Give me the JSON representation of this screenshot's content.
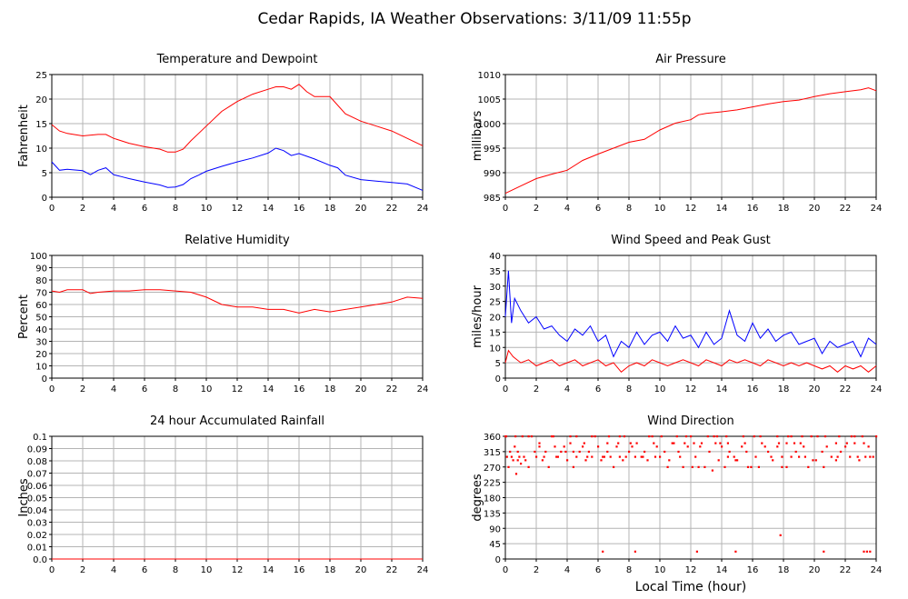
{
  "page": {
    "title": "Cedar Rapids, IA Weather Observations: 3/11/09 11:55p",
    "xlabel": "Local Time (hour)"
  },
  "colors": {
    "series_a": "#ff0000",
    "series_b": "#0000ff",
    "grid": "#b4b4b4"
  },
  "chart_data": [
    {
      "id": "temp",
      "type": "line",
      "title": "Temperature and Dewpoint",
      "ylabel": "Fahrenheit",
      "xlim": [
        0,
        24
      ],
      "xticks": [
        0,
        2,
        4,
        6,
        8,
        10,
        12,
        14,
        16,
        18,
        20,
        22,
        24
      ],
      "ylim": [
        0,
        25
      ],
      "yticks": [
        0,
        5,
        10,
        15,
        20,
        25
      ],
      "grid": true,
      "series": [
        {
          "color": "#ff0000",
          "x": [
            0,
            0.5,
            1,
            2,
            3,
            3.5,
            4,
            5,
            6,
            7,
            7.5,
            8,
            8.5,
            9,
            9.5,
            10,
            11,
            12,
            13,
            14,
            14.5,
            15,
            15.5,
            16,
            16.5,
            17,
            18,
            19,
            20,
            21,
            22,
            23,
            24
          ],
          "y": [
            14.8,
            13.5,
            13,
            12.5,
            12.8,
            12.8,
            12,
            11,
            10.3,
            9.8,
            9.2,
            9.2,
            9.8,
            11.5,
            13,
            14.5,
            17.5,
            19.5,
            21,
            22,
            22.5,
            22.5,
            22,
            23,
            21.5,
            20.5,
            20.5,
            17,
            15.5,
            14.5,
            13.5,
            12,
            10.5
          ]
        },
        {
          "color": "#0000ff",
          "x": [
            0,
            0.5,
            1,
            2,
            2.5,
            3,
            3.5,
            4,
            4.5,
            5,
            6,
            7,
            7.5,
            8,
            8.5,
            9,
            9.5,
            10,
            11,
            12,
            13,
            14,
            14.5,
            15,
            15.5,
            16,
            17,
            18,
            18.5,
            19,
            20,
            21,
            22,
            23,
            24
          ],
          "y": [
            7.2,
            5.5,
            5.7,
            5.4,
            4.6,
            5.5,
            6,
            4.6,
            4.2,
            3.8,
            3.1,
            2.5,
            2.0,
            2.1,
            2.6,
            3.8,
            4.5,
            5.3,
            6.3,
            7.2,
            8,
            9,
            10,
            9.5,
            8.5,
            8.9,
            7.8,
            6.5,
            6,
            4.5,
            3.6,
            3.3,
            3,
            2.7,
            1.4
          ]
        }
      ]
    },
    {
      "id": "pressure",
      "type": "line",
      "title": "Air Pressure",
      "ylabel": "millibars",
      "xlim": [
        0,
        24
      ],
      "xticks": [
        0,
        2,
        4,
        6,
        8,
        10,
        12,
        14,
        16,
        18,
        20,
        22,
        24
      ],
      "ylim": [
        985,
        1010
      ],
      "yticks": [
        985,
        990,
        995,
        1000,
        1005,
        1010
      ],
      "grid": true,
      "series": [
        {
          "color": "#ff0000",
          "x": [
            0,
            1,
            2,
            3,
            4,
            5,
            6,
            7,
            8,
            9,
            10,
            11,
            12,
            12.5,
            13,
            14,
            15,
            16,
            17,
            18,
            19,
            20,
            21,
            22,
            23,
            23.5,
            24
          ],
          "y": [
            985.8,
            987.3,
            988.8,
            989.7,
            990.5,
            992.5,
            993.8,
            995,
            996.2,
            996.8,
            998.7,
            1000.1,
            1000.8,
            1001.8,
            1002.1,
            1002.4,
            1002.8,
            1003.4,
            1004,
            1004.5,
            1004.8,
            1005.5,
            1006.1,
            1006.5,
            1006.9,
            1007.3,
            1006.7
          ]
        }
      ]
    },
    {
      "id": "humidity",
      "type": "line",
      "title": "Relative Humidity",
      "ylabel": "Percent",
      "xlim": [
        0,
        24
      ],
      "xticks": [
        0,
        2,
        4,
        6,
        8,
        10,
        12,
        14,
        16,
        18,
        20,
        22,
        24
      ],
      "ylim": [
        0,
        100
      ],
      "yticks": [
        0,
        10,
        20,
        30,
        40,
        50,
        60,
        70,
        80,
        90,
        100
      ],
      "grid": true,
      "series": [
        {
          "color": "#ff0000",
          "x": [
            0,
            0.5,
            1,
            2,
            2.5,
            3,
            4,
            5,
            6,
            7,
            8,
            9,
            10,
            11,
            12,
            13,
            14,
            15,
            16,
            17,
            18,
            19,
            20,
            21,
            22,
            23,
            24
          ],
          "y": [
            71,
            70,
            72,
            72,
            69,
            70,
            71,
            71,
            72,
            72,
            71,
            70,
            66,
            60,
            58,
            58,
            56,
            56,
            53,
            56,
            54,
            56,
            58,
            60,
            62,
            66,
            65
          ]
        }
      ]
    },
    {
      "id": "wind",
      "type": "line",
      "title": "Wind Speed and Peak Gust",
      "ylabel": "miles/hour",
      "xlim": [
        0,
        24
      ],
      "xticks": [
        0,
        2,
        4,
        6,
        8,
        10,
        12,
        14,
        16,
        18,
        20,
        22,
        24
      ],
      "ylim": [
        0,
        40
      ],
      "yticks": [
        0,
        5,
        10,
        15,
        20,
        25,
        30,
        35,
        40
      ],
      "grid": true,
      "series": [
        {
          "color": "#0000ff",
          "x": [
            0,
            0.2,
            0.4,
            0.6,
            1,
            1.5,
            2,
            2.5,
            3,
            3.5,
            4,
            4.5,
            5,
            5.5,
            6,
            6.5,
            7,
            7.5,
            8,
            8.5,
            9,
            9.5,
            10,
            10.5,
            11,
            11.5,
            12,
            12.5,
            13,
            13.5,
            14,
            14.5,
            15,
            15.5,
            16,
            16.5,
            17,
            17.5,
            18,
            18.5,
            19,
            19.5,
            20,
            20.5,
            21,
            21.5,
            22,
            22.5,
            23,
            23.5,
            24
          ],
          "y": [
            20,
            35,
            18,
            26,
            22,
            18,
            20,
            16,
            17,
            14,
            12,
            16,
            14,
            17,
            12,
            14,
            7,
            12,
            10,
            15,
            11,
            14,
            15,
            12,
            17,
            13,
            14,
            10,
            15,
            11,
            13,
            22,
            14,
            12,
            18,
            13,
            16,
            12,
            14,
            15,
            11,
            12,
            13,
            8,
            12,
            10,
            11,
            12,
            7,
            13,
            11
          ]
        },
        {
          "color": "#ff0000",
          "x": [
            0,
            0.2,
            0.5,
            1,
            1.5,
            2,
            2.5,
            3,
            3.5,
            4,
            4.5,
            5,
            5.5,
            6,
            6.5,
            7,
            7.5,
            8,
            8.5,
            9,
            9.5,
            10,
            10.5,
            11,
            11.5,
            12,
            12.5,
            13,
            13.5,
            14,
            14.5,
            15,
            15.5,
            16,
            16.5,
            17,
            17.5,
            18,
            18.5,
            19,
            19.5,
            20,
            20.5,
            21,
            21.5,
            22,
            22.5,
            23,
            23.5,
            24
          ],
          "y": [
            5,
            9,
            7,
            5,
            6,
            4,
            5,
            6,
            4,
            5,
            6,
            4,
            5,
            6,
            4,
            5,
            2,
            4,
            5,
            4,
            6,
            5,
            4,
            5,
            6,
            5,
            4,
            6,
            5,
            4,
            6,
            5,
            6,
            5,
            4,
            6,
            5,
            4,
            5,
            4,
            5,
            4,
            3,
            4,
            2,
            4,
            3,
            4,
            2,
            4
          ]
        }
      ]
    },
    {
      "id": "rain",
      "type": "line",
      "title": "24 hour Accumulated Rainfall",
      "ylabel": "Inches",
      "xlim": [
        0,
        24
      ],
      "xticks": [
        0,
        2,
        4,
        6,
        8,
        10,
        12,
        14,
        16,
        18,
        20,
        22,
        24
      ],
      "ylim": [
        0,
        0.1
      ],
      "yticks": [
        0.0,
        0.01,
        0.02,
        0.03,
        0.04,
        0.05,
        0.06,
        0.07,
        0.08,
        0.09,
        0.1
      ],
      "ytick_labels": [
        "0.0",
        "0.01",
        "0.02",
        "0.03",
        "0.04",
        "0.05",
        "0.06",
        "0.07",
        "0.08",
        "0.09",
        "0.1"
      ],
      "grid": true,
      "series": [
        {
          "color": "#ff0000",
          "x": [
            0,
            24
          ],
          "y": [
            0,
            0
          ]
        }
      ]
    },
    {
      "id": "direction",
      "type": "scatter",
      "title": "Wind Direction",
      "ylabel": "degrees",
      "xlim": [
        0,
        24
      ],
      "xticks": [
        0,
        2,
        4,
        6,
        8,
        10,
        12,
        14,
        16,
        18,
        20,
        22,
        24
      ],
      "ylim": [
        0,
        360
      ],
      "yticks": [
        0,
        45,
        90,
        135,
        180,
        225,
        270,
        315,
        360
      ],
      "grid": true,
      "series": [
        {
          "color": "#ff0000",
          "x": [
            0,
            0.1,
            0.2,
            0.3,
            0.5,
            0.6,
            0.7,
            0.8,
            0.9,
            1,
            1.1,
            1.3,
            1.5,
            1.7,
            1.9,
            2,
            2.2,
            2.4,
            2.6,
            2.8,
            3,
            3.2,
            3.4,
            3.6,
            3.8,
            4,
            4.2,
            4.4,
            4.6,
            4.8,
            5,
            5.2,
            5.4,
            5.6,
            5.8,
            6,
            6.2,
            6.4,
            6.6,
            6.8,
            7,
            7.2,
            7.4,
            7.6,
            7.8,
            8,
            8.2,
            8.5,
            8.8,
            9,
            9.2,
            9.5,
            9.8,
            10,
            10.3,
            10.6,
            10.9,
            11.2,
            11.5,
            11.8,
            12,
            12.3,
            12.6,
            12.9,
            13.2,
            13.5,
            13.8,
            14,
            14.2,
            14.5,
            14.8,
            15,
            15.3,
            15.6,
            15.9,
            16.2,
            16.5,
            16.8,
            17,
            17.3,
            17.6,
            17.9,
            18.2,
            18.5,
            18.8,
            19,
            19.3,
            19.6,
            19.9,
            20.2,
            20.5,
            20.8,
            21.1,
            21.4,
            21.7,
            22,
            22.3,
            22.6,
            22.9,
            23.2,
            23.5,
            23.8,
            24,
            0.4,
            0.8,
            1.2,
            2.5,
            3.3,
            3.9,
            4.4,
            5.3,
            6.3,
            7.4,
            8.4,
            8.9,
            9.7,
            10.5,
            11.3,
            12.1,
            12.5,
            13.4,
            14.4,
            14.9,
            15.7,
            16.4,
            17.2,
            17.9,
            18.5,
            19.4,
            20.1,
            20.6,
            21.5,
            22.8,
            23.3,
            23.6,
            0.05,
            0.65,
            1.5,
            3.1,
            4.6,
            5.6,
            6.7,
            7.7,
            9.3,
            10.1,
            11.1,
            11.7,
            13.1,
            13.7,
            14.3,
            15.4,
            16.1,
            17.6,
            18.3,
            19.2,
            19.8,
            20.7,
            21.6,
            22.4,
            23.1,
            2.2,
            4.2,
            5.1,
            6.6,
            7.3,
            8.1,
            9.6,
            10.8,
            11.6,
            12.2,
            12.7,
            13.6,
            13.9,
            14.4,
            15.5,
            16.6,
            17.7,
            18.2,
            18.7,
            19.1,
            21.4,
            22.1,
            22.6,
            6.3,
            8.4,
            12.4,
            14.9,
            17.8,
            20.6,
            23.2,
            23.4,
            23.6
          ],
          "y": [
            360,
            300,
            270,
            315,
            290,
            330,
            250,
            290,
            300,
            280,
            360,
            290,
            270,
            360,
            315,
            300,
            330,
            290,
            315,
            270,
            360,
            330,
            300,
            315,
            330,
            290,
            360,
            270,
            300,
            315,
            330,
            290,
            315,
            300,
            360,
            330,
            290,
            300,
            315,
            300,
            270,
            330,
            360,
            290,
            300,
            315,
            330,
            340,
            300,
            315,
            290,
            360,
            330,
            300,
            315,
            290,
            340,
            315,
            270,
            330,
            360,
            300,
            330,
            270,
            315,
            360,
            290,
            330,
            270,
            315,
            300,
            290,
            330,
            315,
            270,
            300,
            360,
            330,
            315,
            290,
            330,
            300,
            270,
            360,
            315,
            300,
            330,
            270,
            290,
            360,
            315,
            330,
            300,
            290,
            315,
            330,
            300,
            360,
            290,
            340,
            330,
            300,
            360,
            300,
            315,
            300,
            300,
            300,
            315,
            315,
            300,
            300,
            300,
            300,
            300,
            300,
            270,
            300,
            270,
            270,
            260,
            300,
            290,
            270,
            270,
            300,
            270,
            300,
            300,
            290,
            270,
            300,
            300,
            300,
            300,
            360,
            360,
            360,
            360,
            360,
            360,
            360,
            360,
            360,
            360,
            360,
            360,
            360,
            360,
            360,
            360,
            360,
            360,
            360,
            360,
            360,
            360,
            360,
            360,
            360,
            340,
            340,
            340,
            340,
            340,
            340,
            340,
            340,
            340,
            340,
            340,
            340,
            340,
            340,
            340,
            340,
            340,
            340,
            340,
            340,
            340,
            340,
            340,
            22,
            22,
            22,
            22,
            70,
            22,
            22,
            22,
            22
          ]
        }
      ]
    }
  ]
}
